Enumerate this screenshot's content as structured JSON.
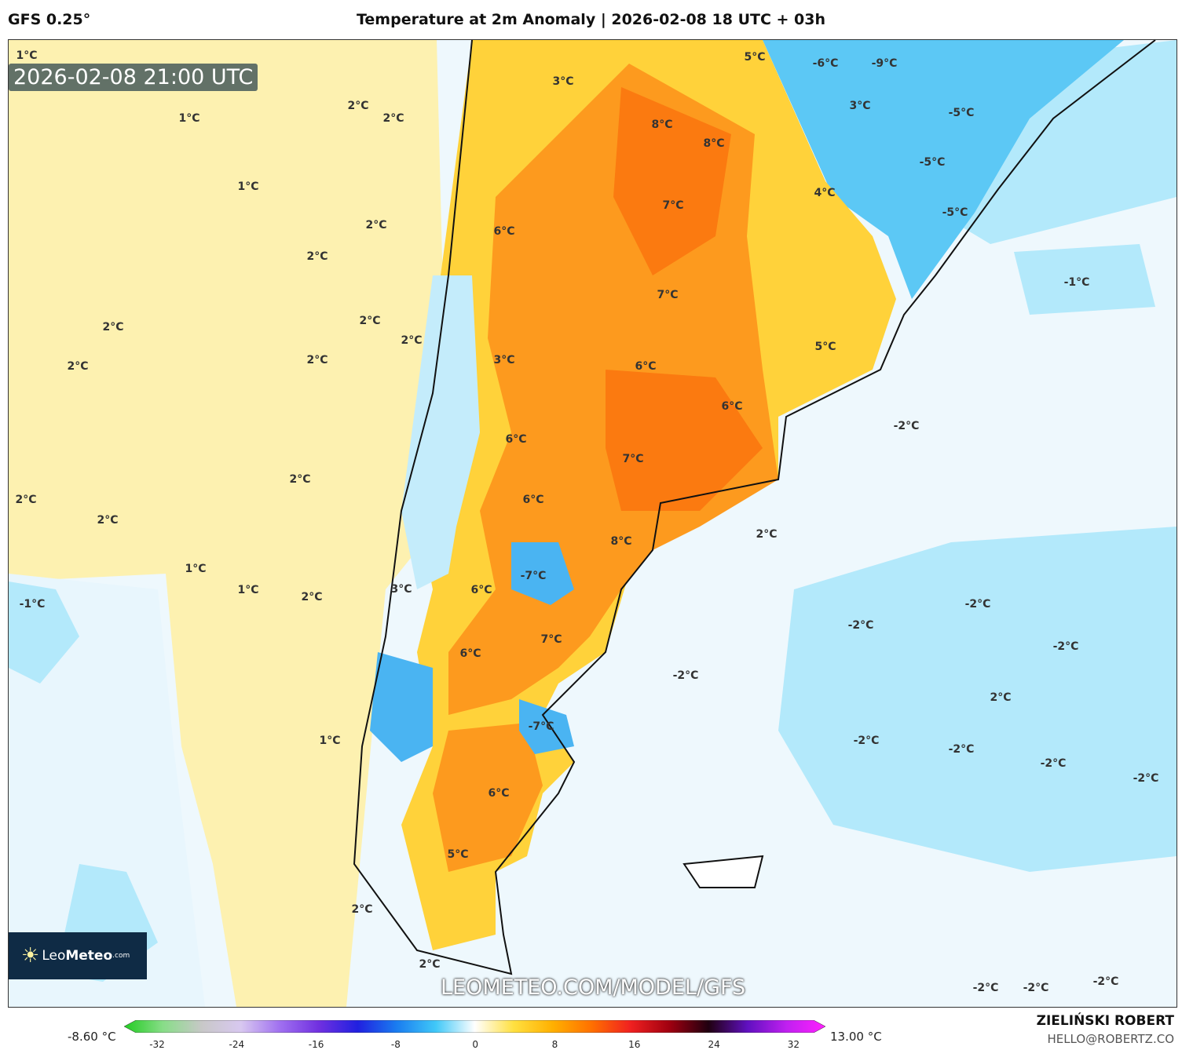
{
  "header": {
    "model": "GFS 0.25°",
    "title": "Temperature at 2m Anomaly | 2026-02-08 18 UTC + 03h"
  },
  "map": {
    "valid_time": "2026-02-08 21:00 UTC",
    "watermark": "LEOMETEO.COM/MODEL/GFS",
    "logo": {
      "text_light": "Leo",
      "text_bold": "Meteo",
      "suffix": ".com",
      "icon": "sun-icon"
    },
    "labels": [
      "1°C",
      "1°C",
      "2°C",
      "2°C",
      "1°C",
      "2°C",
      "2°C",
      "2°C",
      "2°C",
      "2°C",
      "2°C",
      "2°C",
      "3°C",
      "6°C",
      "3°C",
      "5°C",
      "-6°C",
      "-9°C",
      "8°C",
      "8°C",
      "3°C",
      "-5°C",
      "-5°C",
      "4°C",
      "-5°C",
      "7°C",
      "7°C",
      "-1°C",
      "5°C",
      "6°C",
      "6°C",
      "-2°C",
      "6°C",
      "7°C",
      "2°C",
      "2°C",
      "2°C",
      "6°C",
      "8°C",
      "2°C",
      "-1°C",
      "1°C",
      "1°C",
      "2°C",
      "-7°C",
      "6°C",
      "7°C",
      "6°C",
      "-2°C",
      "-2°C",
      "-2°C",
      "-2°C",
      "2°C",
      "-7°C",
      "1°C",
      "-2°C",
      "-2°C",
      "-2°C",
      "-2°C",
      "6°C",
      "5°C",
      "2°C",
      "2°C",
      "-2°C",
      "-2°C",
      "3°C",
      "-2°C"
    ]
  },
  "colorbar": {
    "min_label": "-8.60 °C",
    "max_label": "13.00 °C",
    "ticks": [
      "-32",
      "-24",
      "-16",
      "-8",
      "0",
      "8",
      "16",
      "24",
      "32"
    ],
    "colors": [
      "#22cc22",
      "#88dd88",
      "#c8c8c8",
      "#d8c8f0",
      "#a070f0",
      "#7030e0",
      "#2020e0",
      "#1a7df0",
      "#40c8f8",
      "#ffffff",
      "#ffe040",
      "#ffb000",
      "#ff7000",
      "#f02020",
      "#a00010",
      "#200010",
      "#6010c0",
      "#c020f0",
      "#ff20ff"
    ]
  },
  "credits": {
    "author": "ZIELIŃSKI ROBERT",
    "email": "HELLO@ROBERTZ.CO"
  }
}
